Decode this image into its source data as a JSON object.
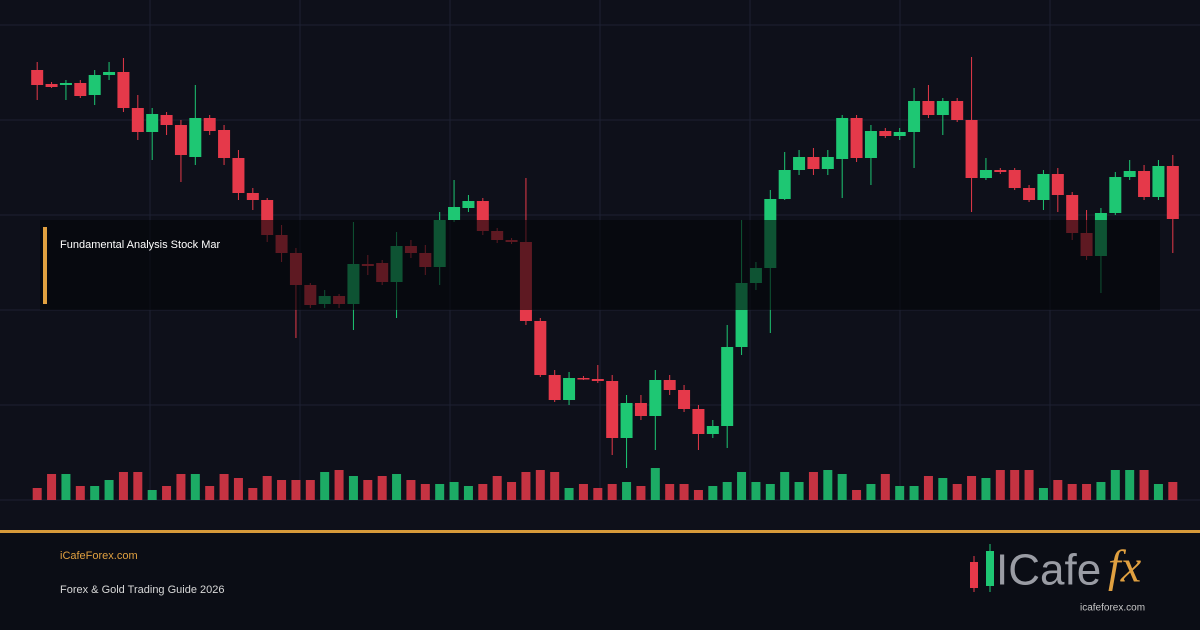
{
  "chart_data": {
    "type": "candlestick",
    "open": [
      430,
      416,
      415,
      417,
      405,
      425,
      428,
      392,
      368,
      385,
      375,
      343,
      382,
      370,
      342,
      307,
      300,
      265,
      247,
      215,
      196,
      204,
      196,
      236,
      237,
      218,
      254,
      247,
      233,
      280,
      292,
      299,
      269,
      260,
      258,
      179,
      125,
      100,
      122,
      121,
      119,
      62,
      97,
      84,
      120,
      110,
      91,
      66,
      74,
      153,
      217,
      232,
      301,
      330,
      343,
      331,
      341,
      382,
      342,
      369,
      364,
      368,
      399,
      385,
      399,
      380,
      322,
      330,
      330,
      312,
      300,
      326,
      305,
      267,
      244,
      287,
      323,
      329,
      303,
      334
    ],
    "high": [
      438,
      418,
      420,
      420,
      430,
      438,
      442,
      405,
      392,
      388,
      380,
      415,
      385,
      375,
      350,
      312,
      302,
      275,
      252,
      217,
      210,
      206,
      278,
      245,
      240,
      268,
      260,
      255,
      288,
      320,
      305,
      302,
      272,
      262,
      322,
      182,
      130,
      128,
      124,
      135,
      125,
      105,
      105,
      130,
      125,
      115,
      95,
      80,
      175,
      280,
      238,
      310,
      348,
      350,
      352,
      350,
      385,
      385,
      375,
      372,
      372,
      412,
      415,
      402,
      402,
      443,
      342,
      332,
      332,
      315,
      330,
      332,
      308,
      290,
      292,
      328,
      340,
      335,
      340,
      345
    ],
    "low": [
      400,
      412,
      400,
      402,
      395,
      420,
      388,
      360,
      340,
      365,
      318,
      335,
      365,
      335,
      300,
      290,
      258,
      238,
      162,
      192,
      192,
      192,
      170,
      225,
      215,
      182,
      242,
      225,
      215,
      278,
      288,
      265,
      257,
      256,
      175,
      123,
      98,
      95,
      120,
      117,
      45,
      32,
      80,
      50,
      105,
      88,
      50,
      62,
      52,
      145,
      210,
      167,
      300,
      325,
      325,
      325,
      302,
      338,
      315,
      362,
      360,
      332,
      382,
      365,
      378,
      288,
      320,
      326,
      310,
      298,
      290,
      288,
      260,
      240,
      207,
      285,
      320,
      300,
      300,
      247
    ],
    "close": [
      415,
      413,
      417,
      404,
      425,
      428,
      392,
      368,
      386,
      375,
      345,
      382,
      369,
      342,
      307,
      300,
      265,
      247,
      215,
      195,
      204,
      196,
      236,
      234,
      218,
      254,
      247,
      233,
      280,
      293,
      299,
      269,
      260,
      258,
      179,
      125,
      100,
      122,
      121,
      119,
      62,
      97,
      84,
      120,
      110,
      91,
      66,
      74,
      153,
      217,
      232,
      301,
      330,
      343,
      331,
      343,
      382,
      342,
      369,
      364,
      368,
      399,
      385,
      399,
      380,
      322,
      330,
      328,
      312,
      300,
      326,
      305,
      267,
      244,
      287,
      323,
      329,
      303,
      334,
      281
    ],
    "volume": [
      12,
      26,
      26,
      14,
      14,
      20,
      28,
      28,
      10,
      14,
      26,
      26,
      14,
      26,
      22,
      12,
      24,
      20,
      20,
      20,
      28,
      30,
      24,
      20,
      24,
      26,
      20,
      16,
      16,
      18,
      14,
      16,
      24,
      18,
      28,
      30,
      28,
      12,
      16,
      12,
      16,
      18,
      14,
      32,
      16,
      16,
      10,
      14,
      18,
      28,
      18,
      16,
      28,
      18,
      28,
      30,
      26,
      10,
      16,
      26,
      14,
      14,
      24,
      22,
      16,
      24,
      22,
      30,
      30,
      30,
      12,
      20,
      16,
      16,
      18,
      30,
      30,
      30,
      16,
      18
    ],
    "ylim": [
      0,
      475
    ],
    "vlim": [
      0,
      100
    ],
    "grid": true,
    "up_color": "#1ec773",
    "down_color": "#e5394a"
  },
  "overlay": {
    "title": "Fundamental Analysis Stock Mar"
  },
  "footer": {
    "site": "iCafeForex.com",
    "tagline": "Forex & Gold Trading Guide 2026"
  },
  "logo": {
    "name": "ICafe",
    "accent": "fx",
    "url": "icafeforex.com"
  }
}
